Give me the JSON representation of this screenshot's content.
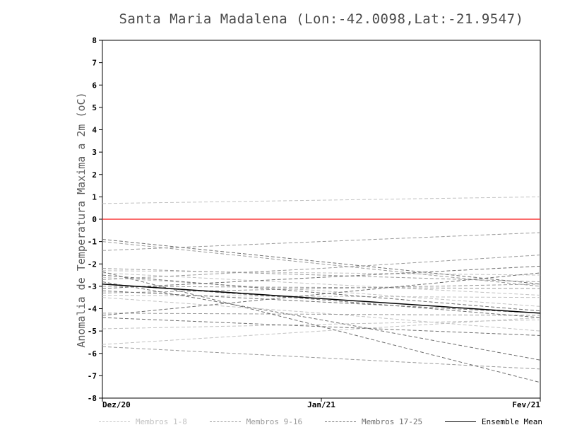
{
  "page": {
    "background": "#ffffff"
  },
  "chart_data": {
    "type": "line",
    "title": "Santa Maria Madalena (Lon:-42.0098,Lat:-21.9547)",
    "ylabel": "Anomalia de Temperatura Maxima a 2m (oC)",
    "xlabel": "",
    "x": [
      "Dez/20",
      "Jan/21",
      "Fev/21"
    ],
    "ylim": [
      -8,
      8
    ],
    "ytick_step": 1,
    "grid": false,
    "legend_position": "bottom",
    "zero_line": {
      "y": 0,
      "color": "#fa3c3c"
    },
    "groups": [
      {
        "name": "Membros 1-8",
        "color": "#c2c2c2",
        "style": "dashed",
        "members": [
          [
            0.7,
            0.85,
            1.0
          ],
          [
            -2.3,
            -2.4,
            -2.5
          ],
          [
            -2.6,
            -3.2,
            -3.9
          ],
          [
            -3.4,
            -3.45,
            -3.5
          ],
          [
            -3.5,
            -4.2,
            -5.0
          ],
          [
            -4.9,
            -4.7,
            -4.5
          ],
          [
            -5.6,
            -5.0,
            -4.4
          ],
          [
            -2.4,
            -2.9,
            -3.4
          ]
        ]
      },
      {
        "name": "Membros 9-16",
        "color": "#9a9a9a",
        "style": "dashed",
        "members": [
          [
            -1.0,
            -2.0,
            -3.0
          ],
          [
            -1.4,
            -1.0,
            -0.6
          ],
          [
            -2.2,
            -2.5,
            -2.8
          ],
          [
            -2.7,
            -2.2,
            -1.6
          ],
          [
            -3.0,
            -3.05,
            -3.1
          ],
          [
            -3.3,
            -3.1,
            -2.9
          ],
          [
            -4.2,
            -4.25,
            -4.3
          ],
          [
            -5.7,
            -6.2,
            -6.7
          ]
        ]
      },
      {
        "name": "Membros 17-25",
        "color": "#6f6f6f",
        "style": "dashed",
        "members": [
          [
            -2.35,
            -4.8,
            -7.3
          ],
          [
            -2.5,
            -3.3,
            -4.1
          ],
          [
            -2.8,
            -4.5,
            -6.3
          ],
          [
            -3.2,
            -3.7,
            -4.2
          ],
          [
            -4.3,
            -3.35,
            -2.4
          ],
          [
            -2.9,
            -3.6,
            -4.4
          ],
          [
            -3.1,
            -2.6,
            -2.1
          ],
          [
            -4.4,
            -4.8,
            -5.2
          ],
          [
            -0.9,
            -1.9,
            -2.9
          ]
        ]
      }
    ],
    "mean": {
      "name": "Ensemble Mean",
      "color": "#000000",
      "style": "solid",
      "values": [
        -2.9,
        -3.55,
        -4.2
      ]
    }
  }
}
